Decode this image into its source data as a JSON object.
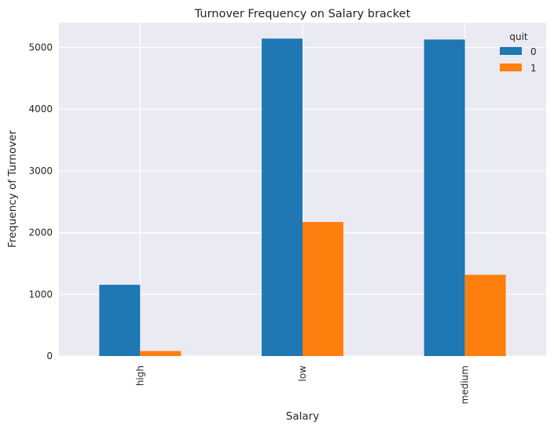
{
  "chart_data": {
    "type": "bar",
    "title": "Turnover Frequency on Salary bracket",
    "xlabel": "Salary",
    "ylabel": "Frequency of Turnover",
    "categories": [
      "high",
      "low",
      "medium"
    ],
    "series": [
      {
        "name": "0",
        "values": [
          1155,
          5144,
          5129
        ],
        "color": "#1f77b4"
      },
      {
        "name": "1",
        "values": [
          82,
          2172,
          1317
        ],
        "color": "#ff7f0e"
      }
    ],
    "ylim": [
      0,
      5401
    ],
    "yticks": [
      0,
      1000,
      2000,
      3000,
      4000,
      5000
    ],
    "grid": true,
    "legend": {
      "title": "quit",
      "placement": "top-right"
    },
    "background": "#eaeaf2"
  }
}
